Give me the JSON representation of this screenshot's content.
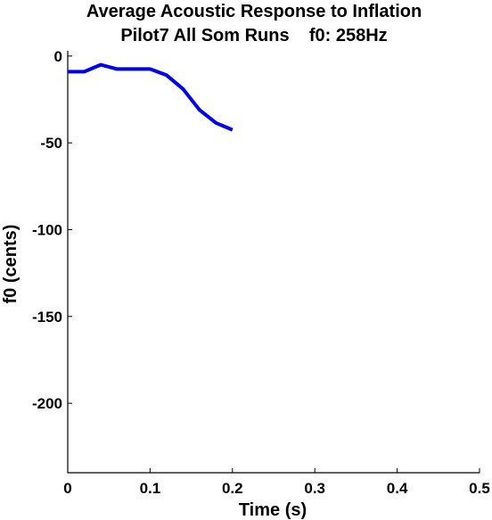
{
  "chart_data": {
    "type": "line",
    "title": "Average Acoustic Response to Inflation",
    "subtitle": "Pilot7 All Som Runs    f0: 258Hz",
    "xlabel": "Time (s)",
    "ylabel": "f0 (cents)",
    "xlim": [
      0,
      0.5
    ],
    "ylim": [
      -240,
      3
    ],
    "xticks": [
      0,
      0.1,
      0.2,
      0.3,
      0.4,
      0.5
    ],
    "xtick_labels": [
      "0",
      "0.1",
      "0.2",
      "0.3",
      "0.4",
      "0.5"
    ],
    "yticks": [
      0,
      -50,
      -100,
      -150,
      -200
    ],
    "ytick_labels": [
      "0",
      "-50",
      "-100",
      "-150",
      "-200"
    ],
    "grid": false,
    "series": [
      {
        "color": "#0000ee",
        "x": [
          0,
          0.02,
          0.04,
          0.06,
          0.08,
          0.1,
          0.12,
          0.14,
          0.16,
          0.18,
          0.2
        ],
        "y": [
          -9,
          -9,
          -5,
          -7.5,
          -7.5,
          -7.5,
          -11,
          -19,
          -31,
          -38.5,
          -42.5
        ]
      }
    ]
  }
}
